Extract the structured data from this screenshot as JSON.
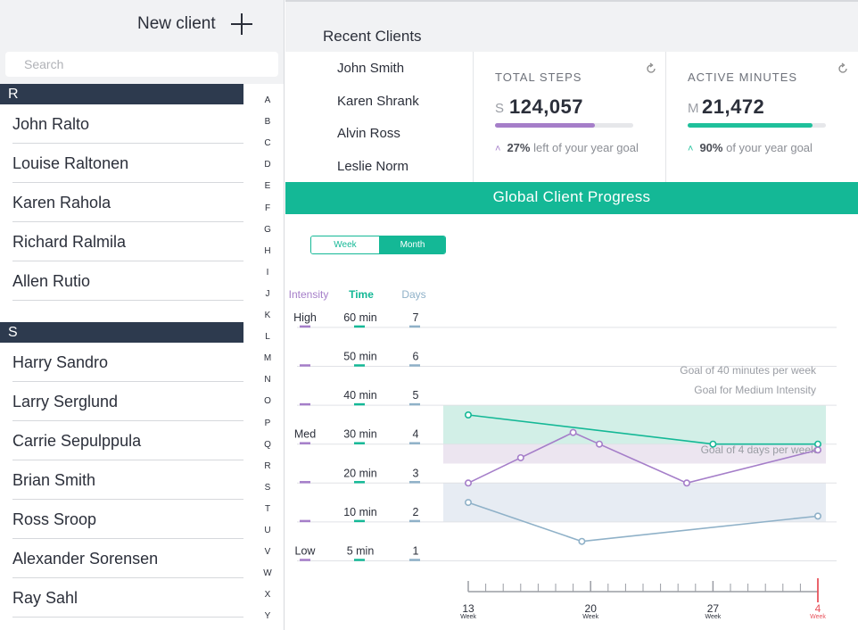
{
  "sidebar": {
    "new_client_label": "New client",
    "search_placeholder": "Search",
    "sections": [
      {
        "letter": "R",
        "clients": [
          "John Ralto",
          "Louise Raltonen",
          "Karen Rahola",
          "Richard Ralmila",
          "Allen Rutio"
        ]
      },
      {
        "letter": "S",
        "clients": [
          "Harry Sandro",
          "Larry Serglund",
          "Carrie Sepulppula",
          "Brian Smith",
          "Ross Sroop",
          "Alexander Sorensen",
          "Ray Sahl"
        ]
      }
    ],
    "index_letters": [
      "A",
      "B",
      "C",
      "D",
      "E",
      "F",
      "G",
      "H",
      "I",
      "J",
      "K",
      "L",
      "M",
      "N",
      "O",
      "P",
      "Q",
      "R",
      "S",
      "T",
      "U",
      "V",
      "W",
      "X",
      "Y"
    ]
  },
  "recent": {
    "title": "Recent Clients",
    "clients": [
      "John Smith",
      "Karen Shrank",
      "Alvin Ross",
      "Leslie Norm"
    ]
  },
  "cards": [
    {
      "title": "TOTAL STEPS",
      "prefix": "S",
      "value": "124,057",
      "progress": 0.72,
      "bar_color": "#a57ec9",
      "foot_pct": "27%",
      "foot_text": "left of your year goal",
      "chev_color": "#a57ec9",
      "icon": "refresh-icon"
    },
    {
      "title": "ACTIVE MINUTES",
      "prefix": "M",
      "value": "21,472",
      "progress": 0.9,
      "bar_color": "#1fc09b",
      "foot_pct": "90%",
      "foot_text": "of your year goal",
      "chev_color": "#1fc09b",
      "icon": "refresh-icon"
    }
  ],
  "progress_title": "Global Client Progress",
  "toggle": {
    "week": "Week",
    "month": "Month",
    "selected": "Month"
  },
  "colors": {
    "accent": "#14b896",
    "intensity": "#a57ec9",
    "time": "#14b896",
    "days": "#8fb1c8",
    "navy": "#2d3a4e",
    "today": "#e8535c"
  },
  "chart_data": {
    "type": "line",
    "scale_headers": [
      "Intensity",
      "Time",
      "Days"
    ],
    "rows": [
      {
        "intensity": "High",
        "time": "60 min",
        "days": "7"
      },
      {
        "intensity": "",
        "time": "50 min",
        "days": "6"
      },
      {
        "intensity": "",
        "time": "40 min",
        "days": "5"
      },
      {
        "intensity": "Med",
        "time": "30 min",
        "days": "4"
      },
      {
        "intensity": "",
        "time": "20 min",
        "days": "3"
      },
      {
        "intensity": "",
        "time": "10 min",
        "days": "2"
      },
      {
        "intensity": "Low",
        "time": "5 min",
        "days": "1"
      }
    ],
    "goal_bands": [
      {
        "label": "Goal of 40 minutes  per week",
        "from_level": 4,
        "to_level": 5,
        "color": "#d2efe7"
      },
      {
        "label": "Goal for Medium Intensity",
        "from_level": 3.5,
        "to_level": 4,
        "color": "#ece5f0"
      },
      {
        "label": "Goal of 4 days per week",
        "from_level": 2,
        "to_level": 3,
        "color": "#e7ecf3"
      }
    ],
    "x_ticks": [
      {
        "label": "13",
        "sub": "Week",
        "pos": 0,
        "today": false
      },
      {
        "label": "20",
        "sub": "Week",
        "pos": 7,
        "today": false
      },
      {
        "label": "27",
        "sub": "Week",
        "pos": 14,
        "today": false
      },
      {
        "label": "4",
        "sub": "Week",
        "pos": 20,
        "today": true
      }
    ],
    "x_range": [
      0,
      20
    ],
    "series": [
      {
        "color": "#14b896",
        "points": [
          [
            0,
            4.75
          ],
          [
            14,
            4.0
          ],
          [
            20,
            4.0
          ]
        ]
      },
      {
        "color": "#a57ec9",
        "points": [
          [
            0,
            3.0
          ],
          [
            3,
            3.65
          ],
          [
            6,
            4.3
          ],
          [
            7.5,
            4.0
          ],
          [
            12.5,
            3.0
          ],
          [
            20,
            3.85
          ]
        ]
      },
      {
        "color": "#8fb1c8",
        "points": [
          [
            0,
            2.5
          ],
          [
            6.5,
            1.5
          ],
          [
            20,
            2.15
          ]
        ]
      }
    ]
  }
}
